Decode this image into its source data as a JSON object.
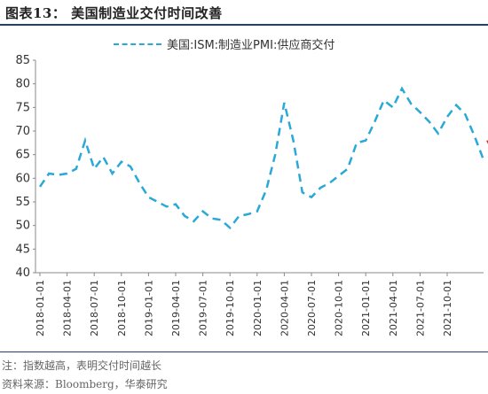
{
  "figure_title": "图表13：  美国制造业交付时间改善",
  "note": "注：指数越高，表明交付时间越长",
  "source": "资料来源：Bloomberg，华泰研究",
  "colors": {
    "series": "#2aa8d8",
    "arrow": "#e0201e",
    "axis": "#888888"
  },
  "chart_data": {
    "type": "line",
    "series": [
      {
        "name": "美国:ISM:制造业PMI:供应商交付",
        "style": "dashed",
        "values": [
          58.2,
          61.0,
          60.7,
          61.0,
          62.0,
          68.0,
          62.0,
          64.5,
          61.0,
          63.5,
          62.5,
          59.0,
          56.0,
          55.0,
          54.0,
          54.5,
          52.0,
          50.9,
          53.0,
          51.5,
          51.2,
          49.5,
          52.0,
          52.4,
          53.0,
          57.5,
          65.0,
          76.0,
          68.0,
          57.0,
          56.0,
          58.0,
          59.0,
          60.5,
          62.0,
          67.5,
          68.0,
          72.0,
          76.5,
          75.0,
          79.0,
          75.8,
          74.0,
          72.0,
          69.5,
          73.0,
          75.5,
          73.5,
          69.0,
          64.0
        ]
      }
    ],
    "x_start": "2018-01-01",
    "x_interval": "month",
    "x_tick_labels": [
      "2018-01-01",
      "2018-04-01",
      "2018-07-01",
      "2018-10-01",
      "2019-01-01",
      "2019-04-01",
      "2019-07-01",
      "2019-10-01",
      "2020-01-01",
      "2020-04-01",
      "2020-07-01",
      "2020-10-01",
      "2021-01-01",
      "2021-04-01",
      "2021-07-01",
      "2021-10-01"
    ],
    "y_ticks": [
      40,
      45,
      50,
      55,
      60,
      65,
      70,
      75,
      80,
      85
    ],
    "ylim": [
      40,
      85
    ],
    "grid": false,
    "legend_position": "top",
    "annotations": [
      {
        "type": "arrow",
        "from_value": 68,
        "to_value": 62,
        "direction": "down-right"
      }
    ]
  }
}
